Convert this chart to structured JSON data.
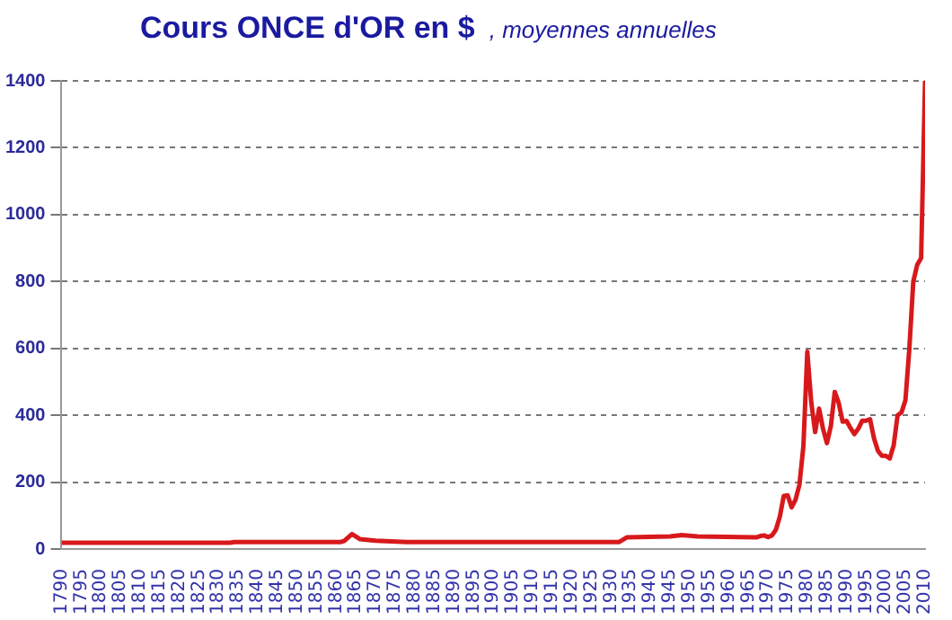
{
  "chart_data": {
    "type": "line",
    "title": "Cours ONCE d'OR en $",
    "subtitle": ", moyennes annuelles",
    "x": [
      1790,
      1833,
      1834,
      1861,
      1862,
      1864,
      1866,
      1870,
      1878,
      1932,
      1934,
      1945,
      1948,
      1952,
      1967,
      1968,
      1969,
      1970,
      1971,
      1972,
      1973,
      1974,
      1975,
      1976,
      1977,
      1978,
      1979,
      1980,
      1981,
      1982,
      1983,
      1984,
      1985,
      1986,
      1987,
      1988,
      1989,
      1990,
      1991,
      1992,
      1993,
      1994,
      1995,
      1996,
      1997,
      1998,
      1999,
      2000,
      2001,
      2002,
      2003,
      2004,
      2005,
      2006,
      2007,
      2008,
      2009,
      2010
    ],
    "series": [
      {
        "color": "#d7191c",
        "values": [
          19,
          19,
          21,
          21,
          24,
          45,
          30,
          25,
          21,
          21,
          35,
          38,
          42,
          38,
          35,
          39,
          41,
          36,
          41,
          58,
          97,
          159,
          161,
          125,
          148,
          193,
          307,
          590,
          440,
          350,
          420,
          360,
          317,
          368,
          470,
          437,
          381,
          383,
          362,
          344,
          360,
          384,
          384,
          388,
          331,
          294,
          279,
          279,
          271,
          310,
          400,
          409,
          445,
          600,
          800,
          850,
          870,
          1400
        ]
      }
    ],
    "xlim": [
      1790,
      2010
    ],
    "xticks": [
      1790,
      1795,
      1800,
      1805,
      1810,
      1815,
      1820,
      1825,
      1830,
      1835,
      1840,
      1845,
      1850,
      1855,
      1860,
      1865,
      1870,
      1875,
      1880,
      1885,
      1890,
      1895,
      1900,
      1905,
      1910,
      1915,
      1920,
      1925,
      1930,
      1935,
      1940,
      1945,
      1950,
      1955,
      1960,
      1965,
      1970,
      1975,
      1980,
      1985,
      1990,
      1995,
      2000,
      2005,
      2010
    ],
    "ylim": [
      0,
      1400
    ],
    "yticks": [
      0,
      200,
      400,
      600,
      800,
      1000,
      1200,
      1400
    ],
    "grid": "y",
    "legend": false,
    "marker": "none",
    "line_style": "solid"
  }
}
